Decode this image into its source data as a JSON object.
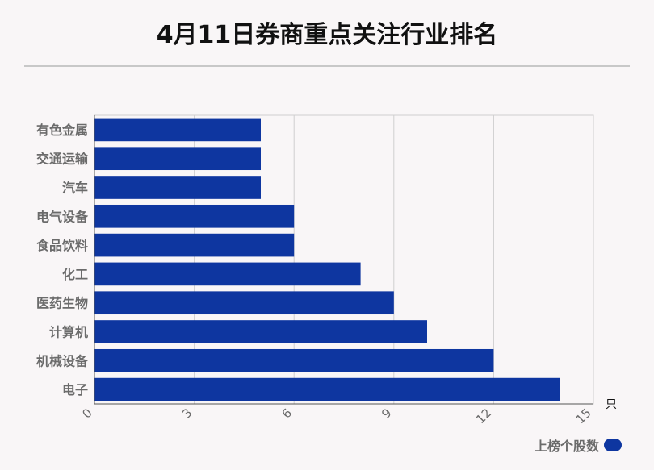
{
  "title": "4月11日券商重点关注行业排名",
  "chart_data": {
    "type": "bar",
    "orientation": "horizontal",
    "categories": [
      "有色金属",
      "交通运输",
      "汽车",
      "电气设备",
      "食品饮料",
      "化工",
      "医药生物",
      "计算机",
      "机械设备",
      "电子"
    ],
    "series": [
      {
        "name": "上榜个股数",
        "values": [
          5,
          5,
          5,
          6,
          6,
          8,
          9,
          10,
          12,
          14
        ]
      }
    ],
    "x_ticks": [
      "0",
      "3",
      "6",
      "9",
      "12",
      "15"
    ],
    "xlim": [
      0,
      15
    ],
    "unit": "只",
    "grid": true,
    "legend_position": "bottom-right",
    "bar_color": "#0e36a0"
  }
}
